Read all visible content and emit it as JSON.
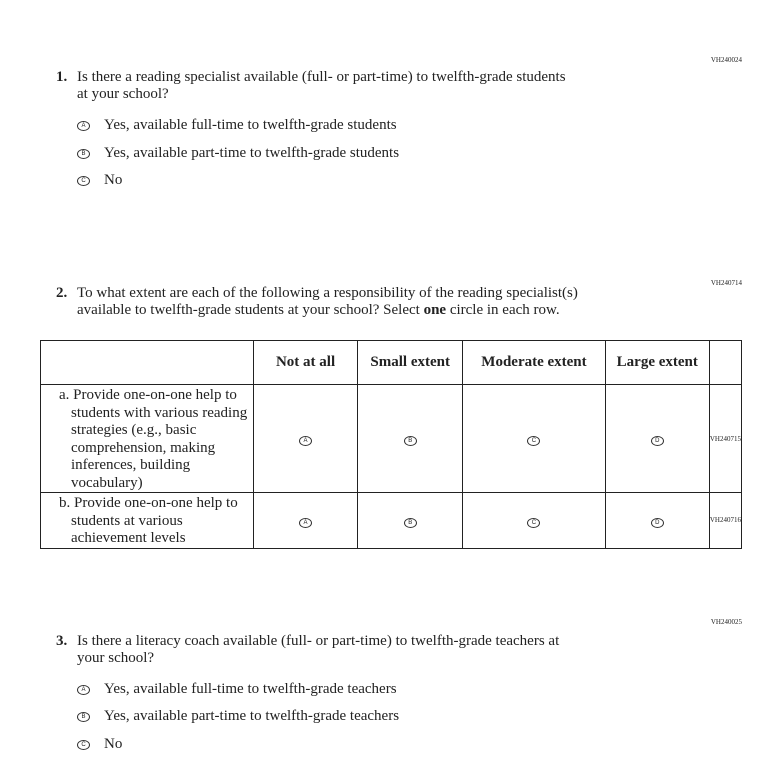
{
  "q1": {
    "code": "VH240024",
    "number": "1.",
    "text_line1": "Is there a reading specialist available (full- or part-time) to twelfth-grade students",
    "text_line2": "at your school?",
    "options": [
      {
        "letter": "A",
        "label": "Yes, available full-time to twelfth-grade students"
      },
      {
        "letter": "B",
        "label": "Yes, available part-time to twelfth-grade students"
      },
      {
        "letter": "C",
        "label": "No"
      }
    ]
  },
  "q2": {
    "code": "VH240714",
    "number": "2.",
    "text_line1": "To what extent are each of the following a responsibility of the reading specialist(s)",
    "text_line2_a": "available to twelfth-grade students at your school? Select ",
    "text_line2_bold": "one",
    "text_line2_b": " circle in each row.",
    "columns": [
      "Not at all",
      "Small extent",
      "Moderate extent",
      "Large extent"
    ],
    "bubbles": [
      "A",
      "B",
      "C",
      "D"
    ],
    "rows": [
      {
        "label": "a. Provide one-on-one help to students with various reading strategies (e.g., basic comprehension, making inferences, building vocabulary)",
        "code": "VH240715"
      },
      {
        "label": "b. Provide one-on-one help to students at various achievement levels",
        "code": "VH240716"
      }
    ]
  },
  "q3": {
    "code": "VH240025",
    "number": "3.",
    "text_line1": "Is there a literacy coach available (full- or part-time) to twelfth-grade teachers at",
    "text_line2": "your school?",
    "options": [
      {
        "letter": "A",
        "label": "Yes, available full-time to twelfth-grade teachers"
      },
      {
        "letter": "B",
        "label": "Yes, available part-time to twelfth-grade teachers"
      },
      {
        "letter": "C",
        "label": "No"
      }
    ]
  }
}
